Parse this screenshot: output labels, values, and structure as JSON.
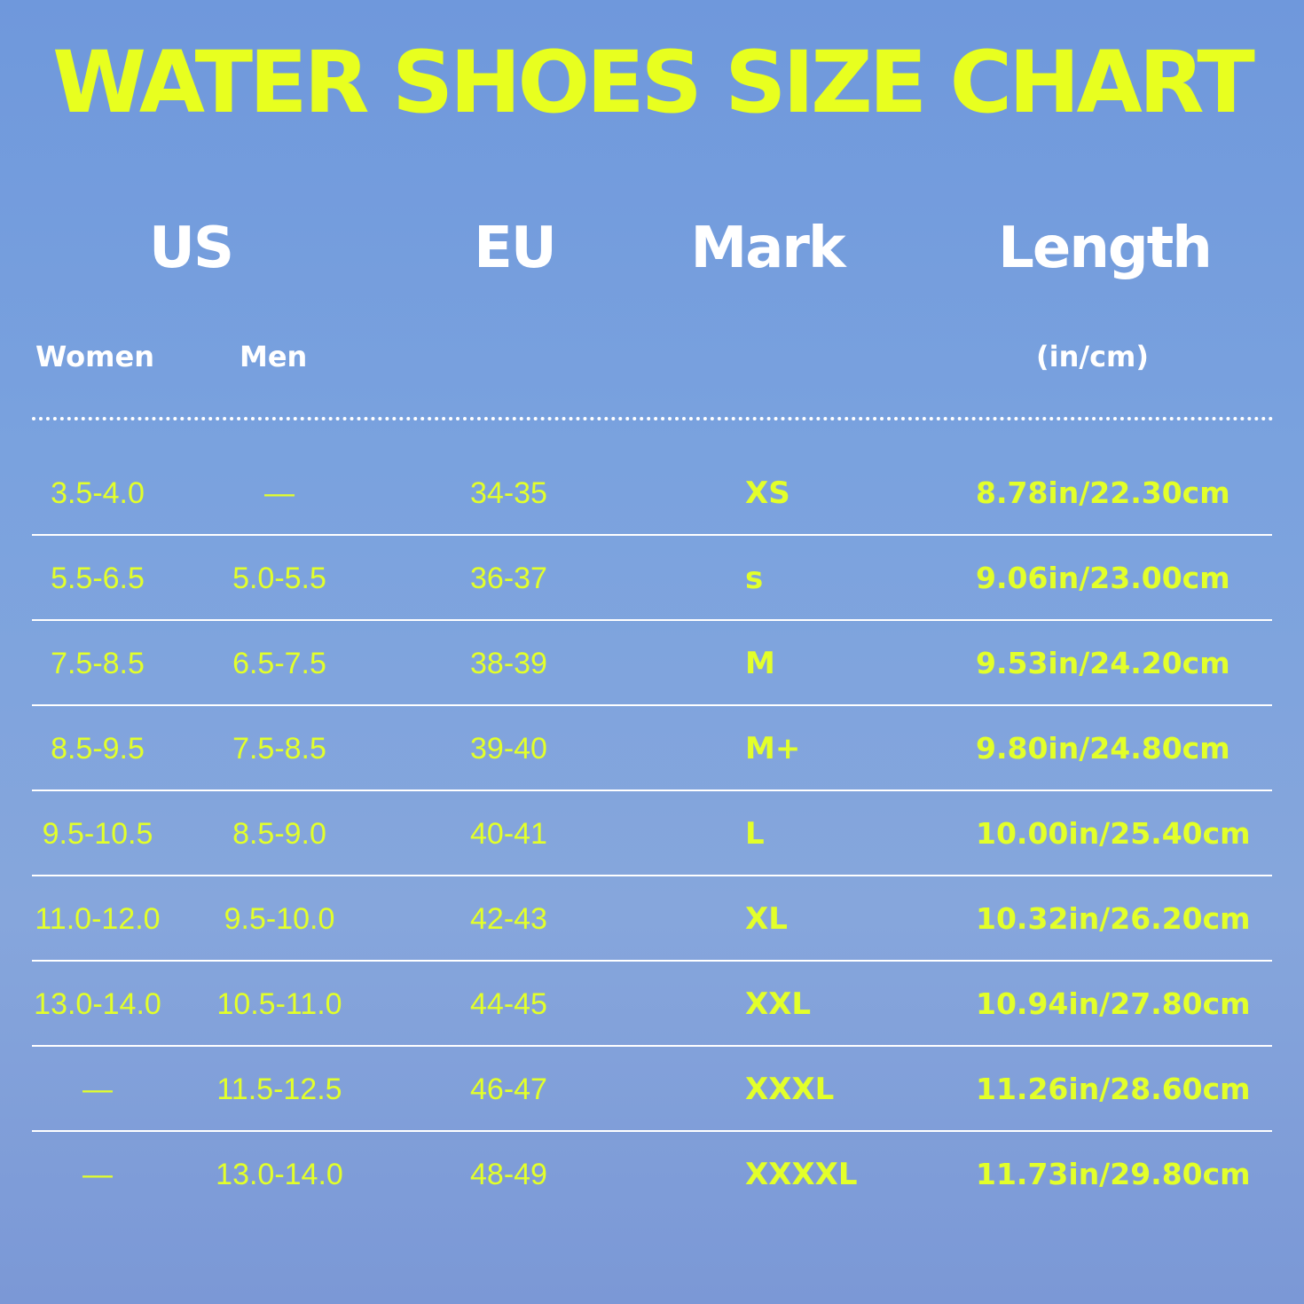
{
  "title": "WATER SHOES SIZE CHART",
  "headers": {
    "us": "US",
    "eu": "EU",
    "mark": "Mark",
    "length": "Length",
    "women": "Women",
    "men": "Men",
    "length_unit": "(in/cm)"
  },
  "colors": {
    "background": "#7aa2de",
    "title": "#e8ff1f",
    "values": "#e3ff2a",
    "headers": "#ffffff"
  },
  "chart_data": {
    "type": "table",
    "title": "WATER SHOES SIZE CHART",
    "columns": [
      "US Women",
      "US Men",
      "EU",
      "Mark",
      "Length (in/cm)"
    ],
    "rows": [
      [
        "3.5-4.0",
        "—",
        "34-35",
        "XS",
        "8.78in/22.30cm"
      ],
      [
        "5.5-6.5",
        "5.0-5.5",
        "36-37",
        "s",
        "9.06in/23.00cm"
      ],
      [
        "7.5-8.5",
        "6.5-7.5",
        "38-39",
        "M",
        "9.53in/24.20cm"
      ],
      [
        "8.5-9.5",
        "7.5-8.5",
        "39-40",
        "M+",
        "9.80in/24.80cm"
      ],
      [
        "9.5-10.5",
        "8.5-9.0",
        "40-41",
        "L",
        "10.00in/25.40cm"
      ],
      [
        "11.0-12.0",
        "9.5-10.0",
        "42-43",
        "XL",
        "10.32in/26.20cm"
      ],
      [
        "13.0-14.0",
        "10.5-11.0",
        "44-45",
        "XXL",
        "10.94in/27.80cm"
      ],
      [
        "—",
        "11.5-12.5",
        "46-47",
        "XXXL",
        "11.26in/28.60cm"
      ],
      [
        "—",
        "13.0-14.0",
        "48-49",
        "XXXXL",
        "11.73in/29.80cm"
      ]
    ]
  }
}
